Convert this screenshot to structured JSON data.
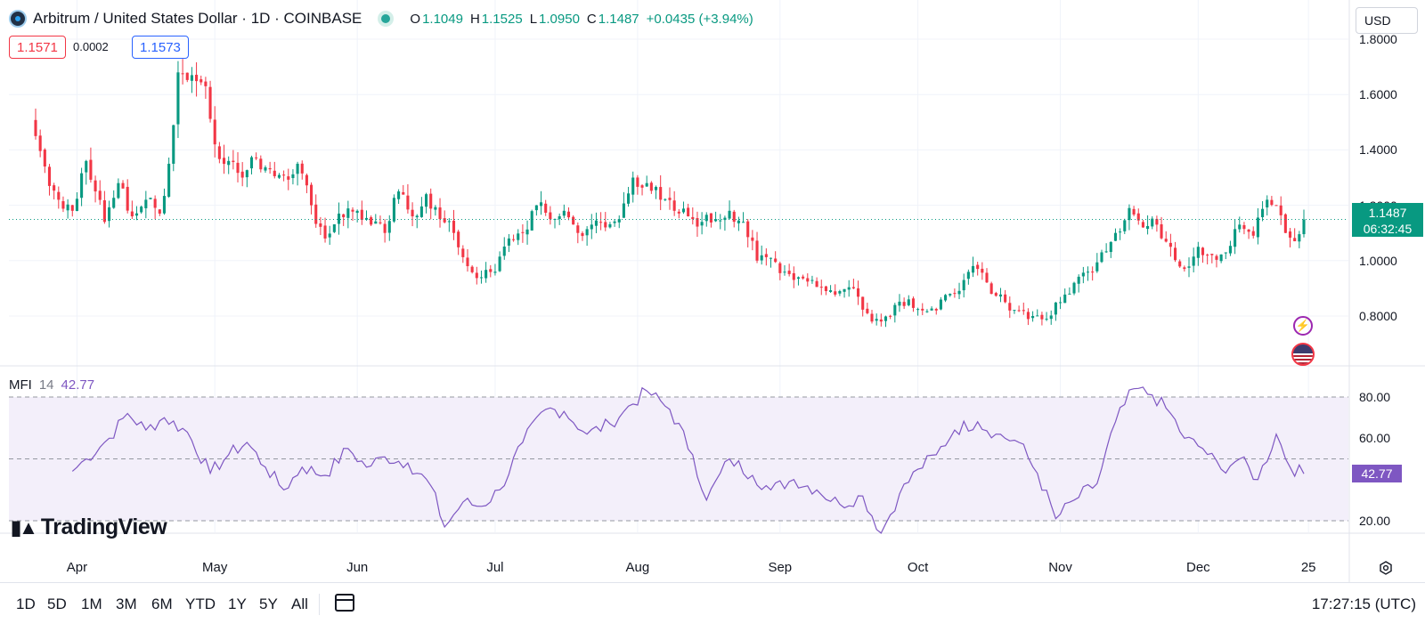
{
  "header": {
    "symbol_title": "Arbitrum / United States Dollar · 1D · COINBASE",
    "ohlc": [
      {
        "k": "O",
        "v": "1.1049"
      },
      {
        "k": "H",
        "v": "1.1525"
      },
      {
        "k": "L",
        "v": "1.0950"
      },
      {
        "k": "C",
        "v": "1.1487"
      }
    ],
    "change": "+0.0435 (+3.94%)",
    "sell_price": "1.1571",
    "spread": "0.0002",
    "buy_price": "1.1573",
    "currency": "USD"
  },
  "price_axis": {
    "labels": [
      "1.8000",
      "1.6000",
      "1.4000",
      "1.2000",
      "1.0000",
      "0.8000"
    ],
    "last_price": "1.1487",
    "countdown": "06:32:45"
  },
  "indicator": {
    "name": "MFI",
    "param": "14",
    "value": "42.77",
    "axis_labels": [
      "80.00",
      "60.00",
      "20.00"
    ]
  },
  "time_axis": {
    "labels": [
      "Apr",
      "May",
      "Jun",
      "Jul",
      "Aug",
      "Sep",
      "Oct",
      "Nov",
      "Dec",
      "25"
    ]
  },
  "brand": "TradingView",
  "bottom_bar": {
    "ranges": [
      "1D",
      "5D",
      "1M",
      "3M",
      "6M",
      "YTD",
      "1Y",
      "5Y",
      "All"
    ],
    "clock": "17:27:15 (UTC)"
  },
  "colors": {
    "up": "#089981",
    "down": "#f23645",
    "mfi_line": "#7e57c2",
    "mfi_band": "#f3effa"
  },
  "chart_data": [
    {
      "type": "candlestick",
      "title": "Arbitrum / United States Dollar · 1D · COINBASE",
      "ylim": [
        0.7,
        1.85
      ],
      "x_range": [
        "2024-03-23",
        "2024-12-24"
      ],
      "last_price": 1.1487,
      "anchors": [
        {
          "date": "2024-03-23",
          "close": 1.45
        },
        {
          "date": "2024-03-25",
          "close": 1.34
        },
        {
          "date": "2024-03-28",
          "close": 1.22
        },
        {
          "date": "2024-03-31",
          "close": 1.18
        },
        {
          "date": "2024-04-03",
          "close": 1.36
        },
        {
          "date": "2024-04-05",
          "close": 1.25
        },
        {
          "date": "2024-04-07",
          "close": 1.14
        },
        {
          "date": "2024-04-10",
          "close": 1.28
        },
        {
          "date": "2024-04-13",
          "close": 1.16
        },
        {
          "date": "2024-04-16",
          "close": 1.22
        },
        {
          "date": "2024-04-19",
          "close": 1.17
        },
        {
          "date": "2024-04-21",
          "close": 1.35
        },
        {
          "date": "2024-04-23",
          "close": 1.68
        },
        {
          "date": "2024-04-26",
          "close": 1.67
        },
        {
          "date": "2024-04-29",
          "close": 1.63
        },
        {
          "date": "2024-05-01",
          "close": 1.42
        },
        {
          "date": "2024-05-04",
          "close": 1.36
        },
        {
          "date": "2024-05-07",
          "close": 1.3
        },
        {
          "date": "2024-05-10",
          "close": 1.37
        },
        {
          "date": "2024-05-13",
          "close": 1.33
        },
        {
          "date": "2024-05-16",
          "close": 1.31
        },
        {
          "date": "2024-05-19",
          "close": 1.35
        },
        {
          "date": "2024-05-22",
          "close": 1.2
        },
        {
          "date": "2024-05-25",
          "close": 1.08
        },
        {
          "date": "2024-05-28",
          "close": 1.17
        },
        {
          "date": "2024-06-01",
          "close": 1.18
        },
        {
          "date": "2024-06-04",
          "close": 1.13
        },
        {
          "date": "2024-06-07",
          "close": 1.1
        },
        {
          "date": "2024-06-10",
          "close": 1.25
        },
        {
          "date": "2024-06-13",
          "close": 1.16
        },
        {
          "date": "2024-06-16",
          "close": 1.24
        },
        {
          "date": "2024-06-19",
          "close": 1.15
        },
        {
          "date": "2024-06-22",
          "close": 1.1
        },
        {
          "date": "2024-06-25",
          "close": 0.98
        },
        {
          "date": "2024-06-28",
          "close": 0.94
        },
        {
          "date": "2024-07-01",
          "close": 0.96
        },
        {
          "date": "2024-07-04",
          "close": 1.08
        },
        {
          "date": "2024-07-07",
          "close": 1.1
        },
        {
          "date": "2024-07-10",
          "close": 1.2
        },
        {
          "date": "2024-07-13",
          "close": 1.15
        },
        {
          "date": "2024-07-16",
          "close": 1.18
        },
        {
          "date": "2024-07-19",
          "close": 1.1
        },
        {
          "date": "2024-07-22",
          "close": 1.13
        },
        {
          "date": "2024-07-25",
          "close": 1.12
        },
        {
          "date": "2024-07-28",
          "close": 1.15
        },
        {
          "date": "2024-07-31",
          "close": 1.3
        },
        {
          "date": "2024-08-03",
          "close": 1.28
        },
        {
          "date": "2024-08-06",
          "close": 1.22
        },
        {
          "date": "2024-08-09",
          "close": 1.18
        },
        {
          "date": "2024-08-12",
          "close": 1.16
        },
        {
          "date": "2024-08-15",
          "close": 1.14
        },
        {
          "date": "2024-08-18",
          "close": 1.15
        },
        {
          "date": "2024-08-21",
          "close": 1.18
        },
        {
          "date": "2024-08-24",
          "close": 1.14
        },
        {
          "date": "2024-08-27",
          "close": 1.0
        },
        {
          "date": "2024-08-30",
          "close": 1.01
        },
        {
          "date": "2024-09-02",
          "close": 0.96
        },
        {
          "date": "2024-09-05",
          "close": 0.94
        },
        {
          "date": "2024-09-08",
          "close": 0.93
        },
        {
          "date": "2024-09-11",
          "close": 0.89
        },
        {
          "date": "2024-09-14",
          "close": 0.89
        },
        {
          "date": "2024-09-17",
          "close": 0.9
        },
        {
          "date": "2024-09-20",
          "close": 0.81
        },
        {
          "date": "2024-09-23",
          "close": 0.78
        },
        {
          "date": "2024-09-26",
          "close": 0.84
        },
        {
          "date": "2024-09-29",
          "close": 0.86
        },
        {
          "date": "2024-10-02",
          "close": 0.82
        },
        {
          "date": "2024-10-05",
          "close": 0.82
        },
        {
          "date": "2024-10-08",
          "close": 0.88
        },
        {
          "date": "2024-10-11",
          "close": 0.93
        },
        {
          "date": "2024-10-14",
          "close": 0.97
        },
        {
          "date": "2024-10-17",
          "close": 0.88
        },
        {
          "date": "2024-10-20",
          "close": 0.85
        },
        {
          "date": "2024-10-23",
          "close": 0.82
        },
        {
          "date": "2024-10-26",
          "close": 0.8
        },
        {
          "date": "2024-10-29",
          "close": 0.79
        },
        {
          "date": "2024-11-01",
          "close": 0.85
        },
        {
          "date": "2024-11-04",
          "close": 0.92
        },
        {
          "date": "2024-11-07",
          "close": 0.96
        },
        {
          "date": "2024-11-10",
          "close": 1.03
        },
        {
          "date": "2024-11-13",
          "close": 1.1
        },
        {
          "date": "2024-11-16",
          "close": 1.19
        },
        {
          "date": "2024-11-19",
          "close": 1.12
        },
        {
          "date": "2024-11-22",
          "close": 1.13
        },
        {
          "date": "2024-11-25",
          "close": 1.05
        },
        {
          "date": "2024-11-28",
          "close": 0.97
        },
        {
          "date": "2024-12-01",
          "close": 1.05
        },
        {
          "date": "2024-12-04",
          "close": 1.02
        },
        {
          "date": "2024-12-07",
          "close": 1.03
        },
        {
          "date": "2024-12-10",
          "close": 1.13
        },
        {
          "date": "2024-12-13",
          "close": 1.09
        },
        {
          "date": "2024-12-16",
          "close": 1.22
        },
        {
          "date": "2024-12-18",
          "close": 1.2
        },
        {
          "date": "2024-12-20",
          "close": 1.1
        },
        {
          "date": "2024-12-22",
          "close": 1.07
        },
        {
          "date": "2024-12-24",
          "close": 1.1487
        }
      ]
    },
    {
      "type": "line",
      "title": "MFI 14",
      "ylim": [
        10,
        90
      ],
      "bands": [
        20,
        80
      ],
      "last_value": 42.77,
      "anchors": [
        {
          "date": "2024-03-31",
          "value": 44
        },
        {
          "date": "2024-04-03",
          "value": 50
        },
        {
          "date": "2024-04-08",
          "value": 60
        },
        {
          "date": "2024-04-12",
          "value": 72
        },
        {
          "date": "2024-04-16",
          "value": 64
        },
        {
          "date": "2024-04-20",
          "value": 70
        },
        {
          "date": "2024-04-25",
          "value": 63
        },
        {
          "date": "2024-04-30",
          "value": 43
        },
        {
          "date": "2024-05-04",
          "value": 52
        },
        {
          "date": "2024-05-08",
          "value": 58
        },
        {
          "date": "2024-05-12",
          "value": 46
        },
        {
          "date": "2024-05-16",
          "value": 35
        },
        {
          "date": "2024-05-20",
          "value": 46
        },
        {
          "date": "2024-05-25",
          "value": 42
        },
        {
          "date": "2024-05-30",
          "value": 55
        },
        {
          "date": "2024-06-03",
          "value": 46
        },
        {
          "date": "2024-06-07",
          "value": 51
        },
        {
          "date": "2024-06-12",
          "value": 48
        },
        {
          "date": "2024-06-17",
          "value": 37
        },
        {
          "date": "2024-06-20",
          "value": 17
        },
        {
          "date": "2024-06-24",
          "value": 29
        },
        {
          "date": "2024-06-28",
          "value": 27
        },
        {
          "date": "2024-07-02",
          "value": 35
        },
        {
          "date": "2024-07-07",
          "value": 58
        },
        {
          "date": "2024-07-12",
          "value": 74
        },
        {
          "date": "2024-07-16",
          "value": 73
        },
        {
          "date": "2024-07-21",
          "value": 62
        },
        {
          "date": "2024-07-26",
          "value": 67
        },
        {
          "date": "2024-07-29",
          "value": 73
        },
        {
          "date": "2024-08-03",
          "value": 83
        },
        {
          "date": "2024-08-08",
          "value": 74
        },
        {
          "date": "2024-08-13",
          "value": 52
        },
        {
          "date": "2024-08-16",
          "value": 30
        },
        {
          "date": "2024-08-21",
          "value": 50
        },
        {
          "date": "2024-08-26",
          "value": 42
        },
        {
          "date": "2024-08-30",
          "value": 35
        },
        {
          "date": "2024-09-04",
          "value": 40
        },
        {
          "date": "2024-09-09",
          "value": 35
        },
        {
          "date": "2024-09-14",
          "value": 28
        },
        {
          "date": "2024-09-19",
          "value": 32
        },
        {
          "date": "2024-09-23",
          "value": 14
        },
        {
          "date": "2024-09-27",
          "value": 33
        },
        {
          "date": "2024-10-01",
          "value": 45
        },
        {
          "date": "2024-10-05",
          "value": 52
        },
        {
          "date": "2024-10-09",
          "value": 64
        },
        {
          "date": "2024-10-14",
          "value": 68
        },
        {
          "date": "2024-10-18",
          "value": 62
        },
        {
          "date": "2024-10-23",
          "value": 58
        },
        {
          "date": "2024-10-27",
          "value": 43
        },
        {
          "date": "2024-10-31",
          "value": 21
        },
        {
          "date": "2024-11-04",
          "value": 30
        },
        {
          "date": "2024-11-09",
          "value": 38
        },
        {
          "date": "2024-11-13",
          "value": 68
        },
        {
          "date": "2024-11-17",
          "value": 84
        },
        {
          "date": "2024-11-21",
          "value": 81
        },
        {
          "date": "2024-11-25",
          "value": 72
        },
        {
          "date": "2024-11-28",
          "value": 60
        },
        {
          "date": "2024-12-02",
          "value": 55
        },
        {
          "date": "2024-12-06",
          "value": 45
        },
        {
          "date": "2024-12-10",
          "value": 50
        },
        {
          "date": "2024-12-14",
          "value": 40
        },
        {
          "date": "2024-12-18",
          "value": 62
        },
        {
          "date": "2024-12-21",
          "value": 46
        },
        {
          "date": "2024-12-24",
          "value": 42.77
        }
      ]
    }
  ]
}
